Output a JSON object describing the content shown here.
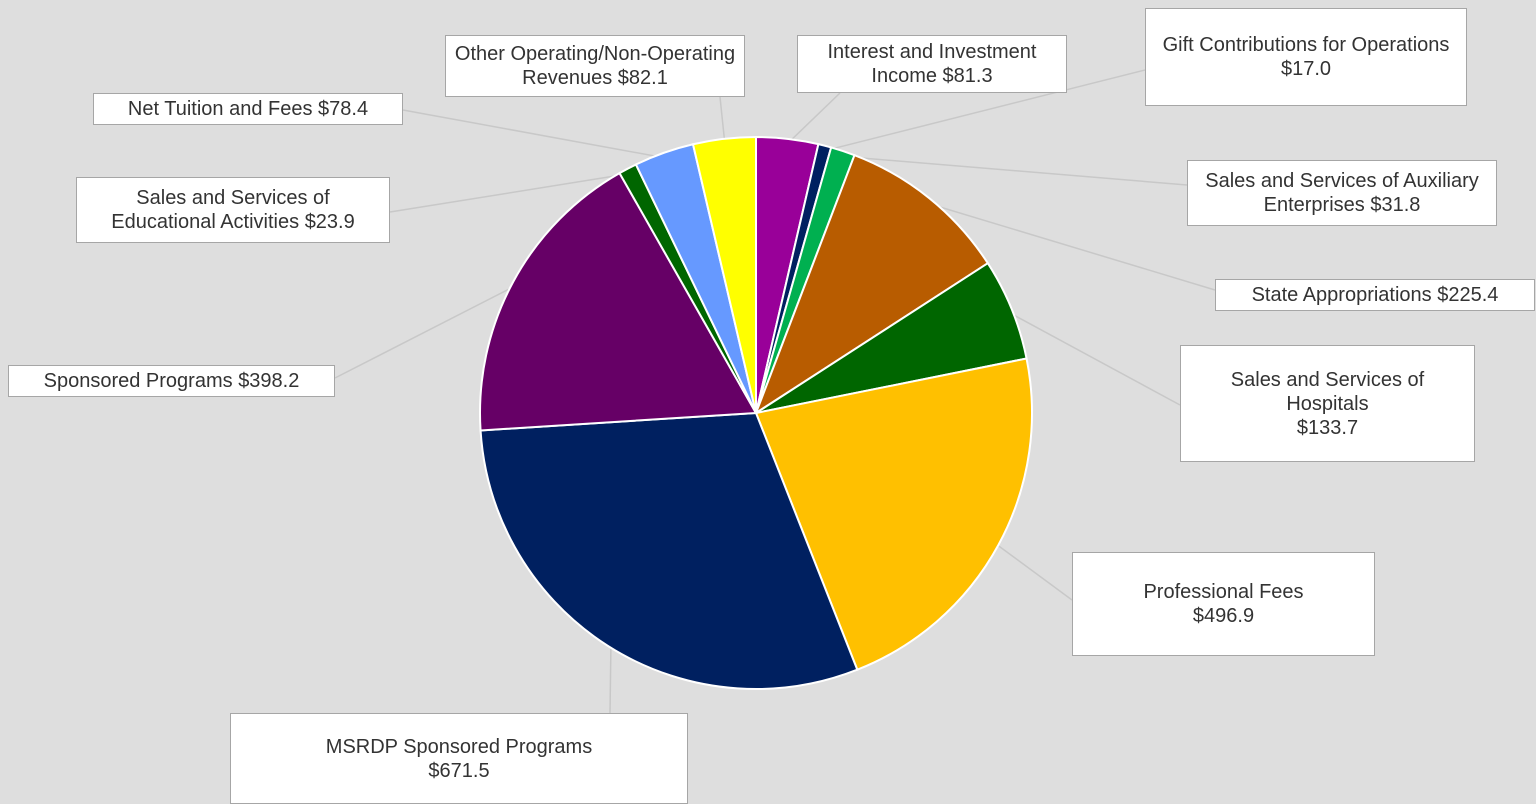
{
  "chart_data": {
    "type": "pie",
    "categories": [
      "Interest and Investment Income",
      "Gift Contributions for Operations",
      "Sales and Services of Auxiliary Enterprises",
      "State Appropriations",
      "Sales and Services of Hospitals",
      "Professional Fees",
      "MSRDP Sponsored Programs",
      "Sponsored Programs",
      "Sales and Services of Educational Activities",
      "Net Tuition and Fees",
      "Other Operating/Non-Operating Revenues"
    ],
    "values": [
      81.3,
      17.0,
      31.8,
      225.4,
      133.7,
      496.9,
      671.5,
      398.2,
      23.9,
      78.4,
      82.1
    ],
    "value_labels": [
      "$81.3",
      "$17.0",
      "$31.8",
      "$225.4",
      "$133.7",
      "$496.9",
      "$671.5",
      "$398.2",
      "$23.9",
      "$78.4",
      "$82.1"
    ],
    "colors": [
      "#990099",
      "#002060",
      "#00b050",
      "#b85c00",
      "#006600",
      "#ffc000",
      "#002060",
      "#660066",
      "#006600",
      "#6699ff",
      "#ffff00"
    ]
  }
}
